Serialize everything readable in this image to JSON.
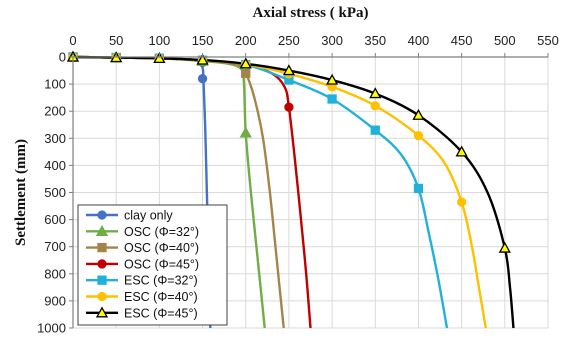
{
  "chart_data": {
    "type": "line",
    "xlabel": "Axial stress ( kPa)",
    "ylabel": "Settlement (mm)",
    "xlim": [
      0,
      550
    ],
    "ylim": [
      0,
      1000
    ],
    "x_ticks": [
      0,
      50,
      100,
      150,
      200,
      250,
      300,
      350,
      400,
      450,
      500,
      550
    ],
    "y_ticks": [
      0,
      100,
      200,
      300,
      400,
      500,
      600,
      700,
      800,
      900,
      1000
    ],
    "x_axis_position": "top",
    "y_inverted": true,
    "grid": true,
    "legend_position": "bottom-left",
    "series": [
      {
        "name": "clay only",
        "color": "#4472C4",
        "marker": "circle",
        "curve": [
          [
            0,
            0
          ],
          [
            50,
            2
          ],
          [
            100,
            5
          ],
          [
            130,
            9
          ],
          [
            145,
            16
          ],
          [
            150,
            40
          ],
          [
            151,
            80
          ],
          [
            153,
            250
          ],
          [
            155,
            500
          ],
          [
            157,
            750
          ],
          [
            159,
            1000
          ]
        ],
        "markers": [
          [
            0,
            0
          ],
          [
            50,
            2
          ],
          [
            100,
            5
          ],
          [
            150,
            20
          ],
          [
            150,
            80
          ]
        ]
      },
      {
        "name": "OSC (Φ=32°)",
        "color": "#70AD47",
        "marker": "triangle",
        "curve": [
          [
            0,
            0
          ],
          [
            50,
            2
          ],
          [
            100,
            5
          ],
          [
            150,
            15
          ],
          [
            180,
            25
          ],
          [
            195,
            45
          ],
          [
            198,
            100
          ],
          [
            200,
            280
          ],
          [
            206,
            500
          ],
          [
            214,
            750
          ],
          [
            222,
            1000
          ]
        ],
        "markers": [
          [
            0,
            0
          ],
          [
            50,
            2
          ],
          [
            100,
            5
          ],
          [
            150,
            15
          ],
          [
            200,
            280
          ]
        ]
      },
      {
        "name": "OSC (Φ=40°)",
        "color": "#A5844A",
        "marker": "square",
        "curve": [
          [
            0,
            0
          ],
          [
            50,
            2
          ],
          [
            100,
            5
          ],
          [
            150,
            13
          ],
          [
            190,
            28
          ],
          [
            200,
            60
          ],
          [
            210,
            150
          ],
          [
            220,
            300
          ],
          [
            228,
            500
          ],
          [
            236,
            750
          ],
          [
            244,
            1000
          ]
        ],
        "markers": [
          [
            0,
            0
          ],
          [
            50,
            2
          ],
          [
            100,
            5
          ],
          [
            150,
            13
          ],
          [
            200,
            60
          ]
        ]
      },
      {
        "name": "OSC (Φ=45°)",
        "color": "#C00000",
        "marker": "circle",
        "curve": [
          [
            0,
            0
          ],
          [
            50,
            2
          ],
          [
            100,
            5
          ],
          [
            150,
            12
          ],
          [
            200,
            28
          ],
          [
            230,
            60
          ],
          [
            245,
            110
          ],
          [
            250,
            185
          ],
          [
            257,
            380
          ],
          [
            264,
            600
          ],
          [
            270,
            800
          ],
          [
            275,
            1000
          ]
        ],
        "markers": [
          [
            0,
            0
          ],
          [
            50,
            2
          ],
          [
            100,
            5
          ],
          [
            150,
            12
          ],
          [
            200,
            28
          ],
          [
            250,
            185
          ]
        ]
      },
      {
        "name": "ESC (Φ=32°)",
        "color": "#21B1DB",
        "marker": "square",
        "curve": [
          [
            0,
            0
          ],
          [
            50,
            2
          ],
          [
            100,
            5
          ],
          [
            150,
            12
          ],
          [
            200,
            28
          ],
          [
            250,
            85
          ],
          [
            300,
            155
          ],
          [
            350,
            270
          ],
          [
            380,
            360
          ],
          [
            400,
            485
          ],
          [
            412,
            650
          ],
          [
            423,
            820
          ],
          [
            433,
            1000
          ]
        ],
        "markers": [
          [
            0,
            0
          ],
          [
            50,
            2
          ],
          [
            100,
            5
          ],
          [
            150,
            12
          ],
          [
            200,
            28
          ],
          [
            250,
            85
          ],
          [
            300,
            155
          ],
          [
            350,
            270
          ],
          [
            400,
            485
          ]
        ]
      },
      {
        "name": "ESC (Φ=40°)",
        "color": "#FFC000",
        "marker": "circle",
        "curve": [
          [
            0,
            0
          ],
          [
            50,
            2
          ],
          [
            100,
            5
          ],
          [
            150,
            12
          ],
          [
            200,
            27
          ],
          [
            250,
            62
          ],
          [
            300,
            110
          ],
          [
            350,
            180
          ],
          [
            400,
            290
          ],
          [
            430,
            390
          ],
          [
            450,
            535
          ],
          [
            462,
            700
          ],
          [
            470,
            850
          ],
          [
            478,
            1000
          ]
        ],
        "markers": [
          [
            0,
            0
          ],
          [
            50,
            2
          ],
          [
            100,
            5
          ],
          [
            150,
            12
          ],
          [
            200,
            27
          ],
          [
            250,
            62
          ],
          [
            300,
            110
          ],
          [
            350,
            180
          ],
          [
            400,
            290
          ],
          [
            450,
            535
          ]
        ]
      },
      {
        "name": "ESC (Φ=45°)",
        "color": "#000000",
        "marker": "triangle",
        "marker_fill": "#FFFF00",
        "curve": [
          [
            0,
            0
          ],
          [
            50,
            2
          ],
          [
            100,
            5
          ],
          [
            150,
            11
          ],
          [
            200,
            25
          ],
          [
            250,
            50
          ],
          [
            300,
            85
          ],
          [
            350,
            135
          ],
          [
            400,
            215
          ],
          [
            450,
            350
          ],
          [
            480,
            500
          ],
          [
            500,
            705
          ],
          [
            506,
            850
          ],
          [
            510,
            1000
          ]
        ],
        "markers": [
          [
            0,
            0
          ],
          [
            50,
            2
          ],
          [
            100,
            5
          ],
          [
            150,
            11
          ],
          [
            200,
            25
          ],
          [
            250,
            50
          ],
          [
            300,
            85
          ],
          [
            350,
            135
          ],
          [
            400,
            215
          ],
          [
            450,
            350
          ],
          [
            500,
            705
          ]
        ]
      }
    ]
  }
}
